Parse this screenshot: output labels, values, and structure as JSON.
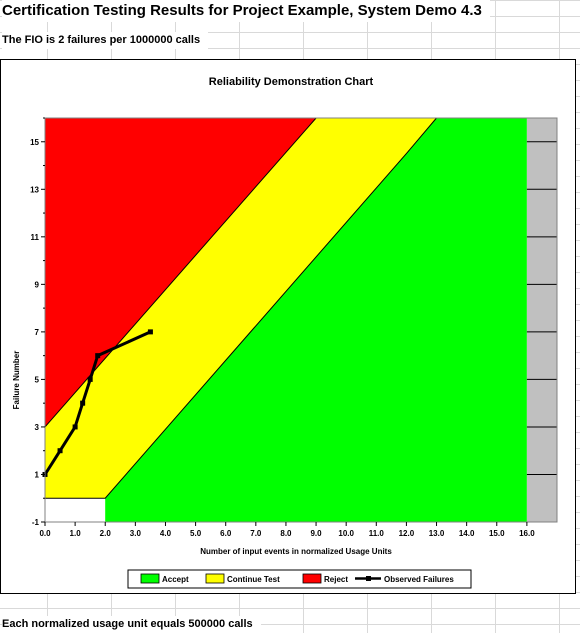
{
  "sheet": {
    "title": "Certification Testing Results for Project Example, System Demo 4.3",
    "fio_text": "The FIO is 2 failures per 1000000 calls",
    "footer_text": "Each normalized usage unit equals 500000 calls"
  },
  "colors": {
    "reject": "#ff0000",
    "continue": "#ffff00",
    "accept": "#00ff00",
    "beyond": "#c0c0c0",
    "observed": "#000000"
  },
  "chart_data": {
    "type": "area",
    "title": "Reliability Demonstration Chart",
    "xlabel": "Number of input events in normalized Usage Units",
    "ylabel": "Failure Number",
    "xlim": [
      0,
      17
    ],
    "ylim": [
      -1,
      16
    ],
    "x_ticks": [
      "0.0",
      "1.0",
      "2.0",
      "3.0",
      "4.0",
      "5.0",
      "6.0",
      "7.0",
      "8.0",
      "9.0",
      "10.0",
      "11.0",
      "12.0",
      "13.0",
      "14.0",
      "15.0",
      "16.0"
    ],
    "y_ticks": [
      "-1",
      "1",
      "3",
      "5",
      "7",
      "9",
      "11",
      "13",
      "15"
    ],
    "regions": {
      "reject_boundary": [
        [
          0,
          3
        ],
        [
          9.0,
          16
        ]
      ],
      "accept_boundary": [
        [
          0,
          0
        ],
        [
          2.0,
          0
        ],
        [
          12.0,
          14.5
        ],
        [
          13.0,
          16
        ]
      ],
      "accept_end_x": 16.0
    },
    "legend": [
      "Accept",
      "Continue Test",
      "Reject",
      "Observed Failures"
    ],
    "legend_position": "bottom",
    "observed_failures": {
      "name": "Observed Failures",
      "x": [
        0.0,
        0.5,
        1.0,
        1.25,
        1.5,
        1.75,
        3.5
      ],
      "y": [
        1,
        2,
        3,
        4,
        5,
        6,
        7
      ]
    }
  }
}
